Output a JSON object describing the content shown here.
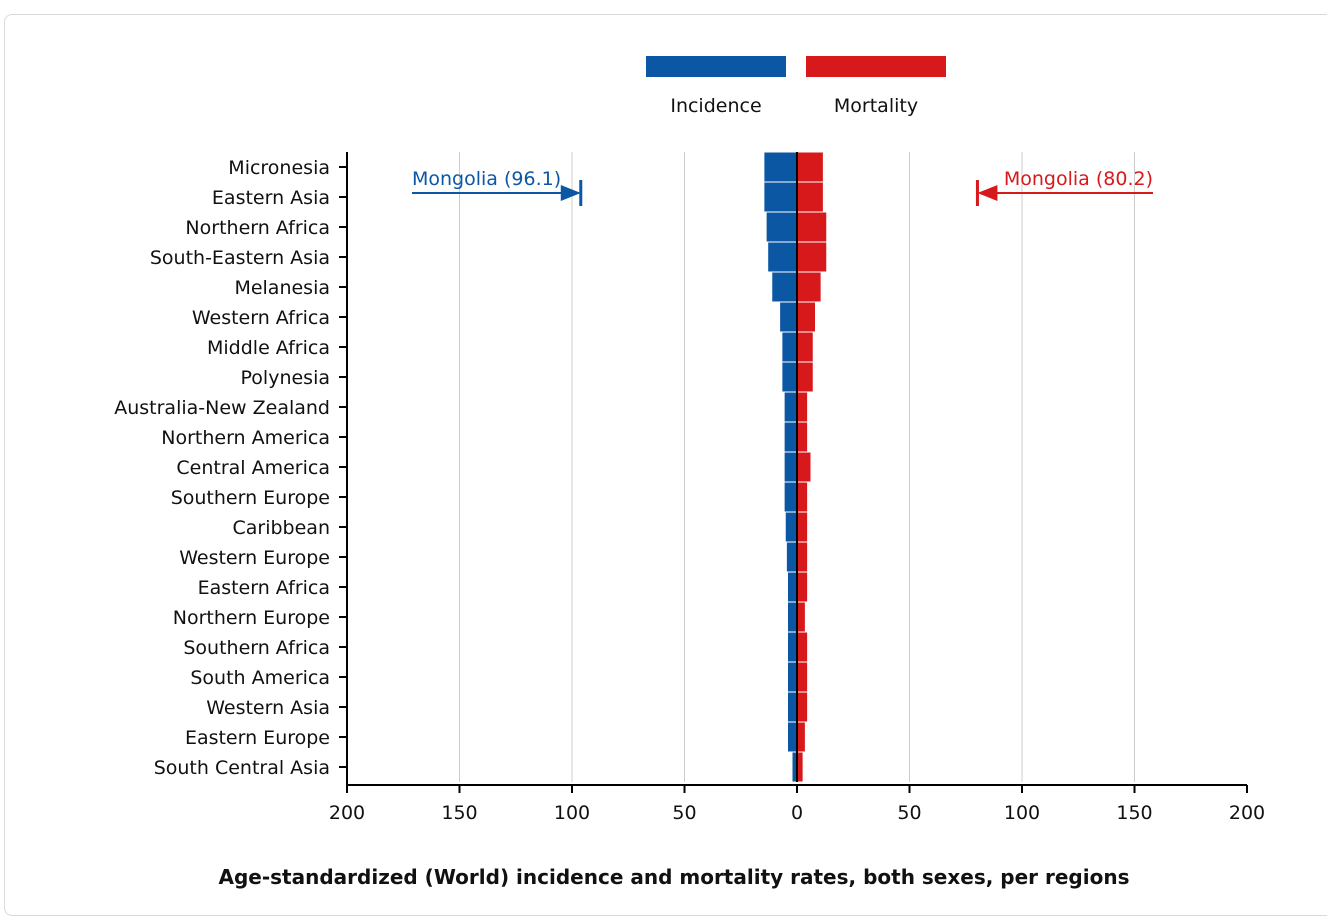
{
  "chart_data": {
    "type": "bar",
    "orientation": "horizontal-butterfly",
    "title": "Age-standardized (World) incidence and mortality rates, both sexes, per regions",
    "categories": [
      "Micronesia",
      "Eastern Asia",
      "Northern Africa",
      "South-Eastern Asia",
      "Melanesia",
      "Western Africa",
      "Middle Africa",
      "Polynesia",
      "Australia-New Zealand",
      "Northern America",
      "Central America",
      "Southern Europe",
      "Caribbean",
      "Western Europe",
      "Eastern Africa",
      "Northern Europe",
      "Southern Africa",
      "South America",
      "Western Asia",
      "Eastern Europe",
      "South Central Asia"
    ],
    "series": [
      {
        "name": "Incidence",
        "color": "#0b57a4",
        "direction": "left",
        "values": [
          14.5,
          14.5,
          13.5,
          12.8,
          11.0,
          7.5,
          6.5,
          6.5,
          5.5,
          5.5,
          5.5,
          5.5,
          5.0,
          4.5,
          4.0,
          4.0,
          4.0,
          4.0,
          4.0,
          4.0,
          2.0
        ]
      },
      {
        "name": "Mortality",
        "color": "#d7191c",
        "direction": "right",
        "values": [
          11.5,
          11.5,
          13.0,
          13.0,
          10.5,
          8.0,
          7.0,
          7.0,
          4.5,
          4.5,
          6.0,
          4.5,
          4.5,
          4.5,
          4.5,
          3.5,
          4.5,
          4.5,
          4.5,
          3.5,
          2.5
        ]
      }
    ],
    "x_ticks": [
      "200",
      "150",
      "100",
      "50",
      "0",
      "50",
      "100",
      "150",
      "200"
    ],
    "xlim": [
      -200,
      200
    ],
    "grid": true,
    "legend": [
      "Incidence",
      "Mortality"
    ],
    "legend_position": "top-center",
    "annotations": [
      {
        "label": "Mongolia (96.1)",
        "series": "Incidence",
        "value": 96.1,
        "color": "#0b57a4"
      },
      {
        "label": "Mongolia (80.2)",
        "series": "Mortality",
        "value": 80.2,
        "color": "#d7191c"
      }
    ]
  }
}
